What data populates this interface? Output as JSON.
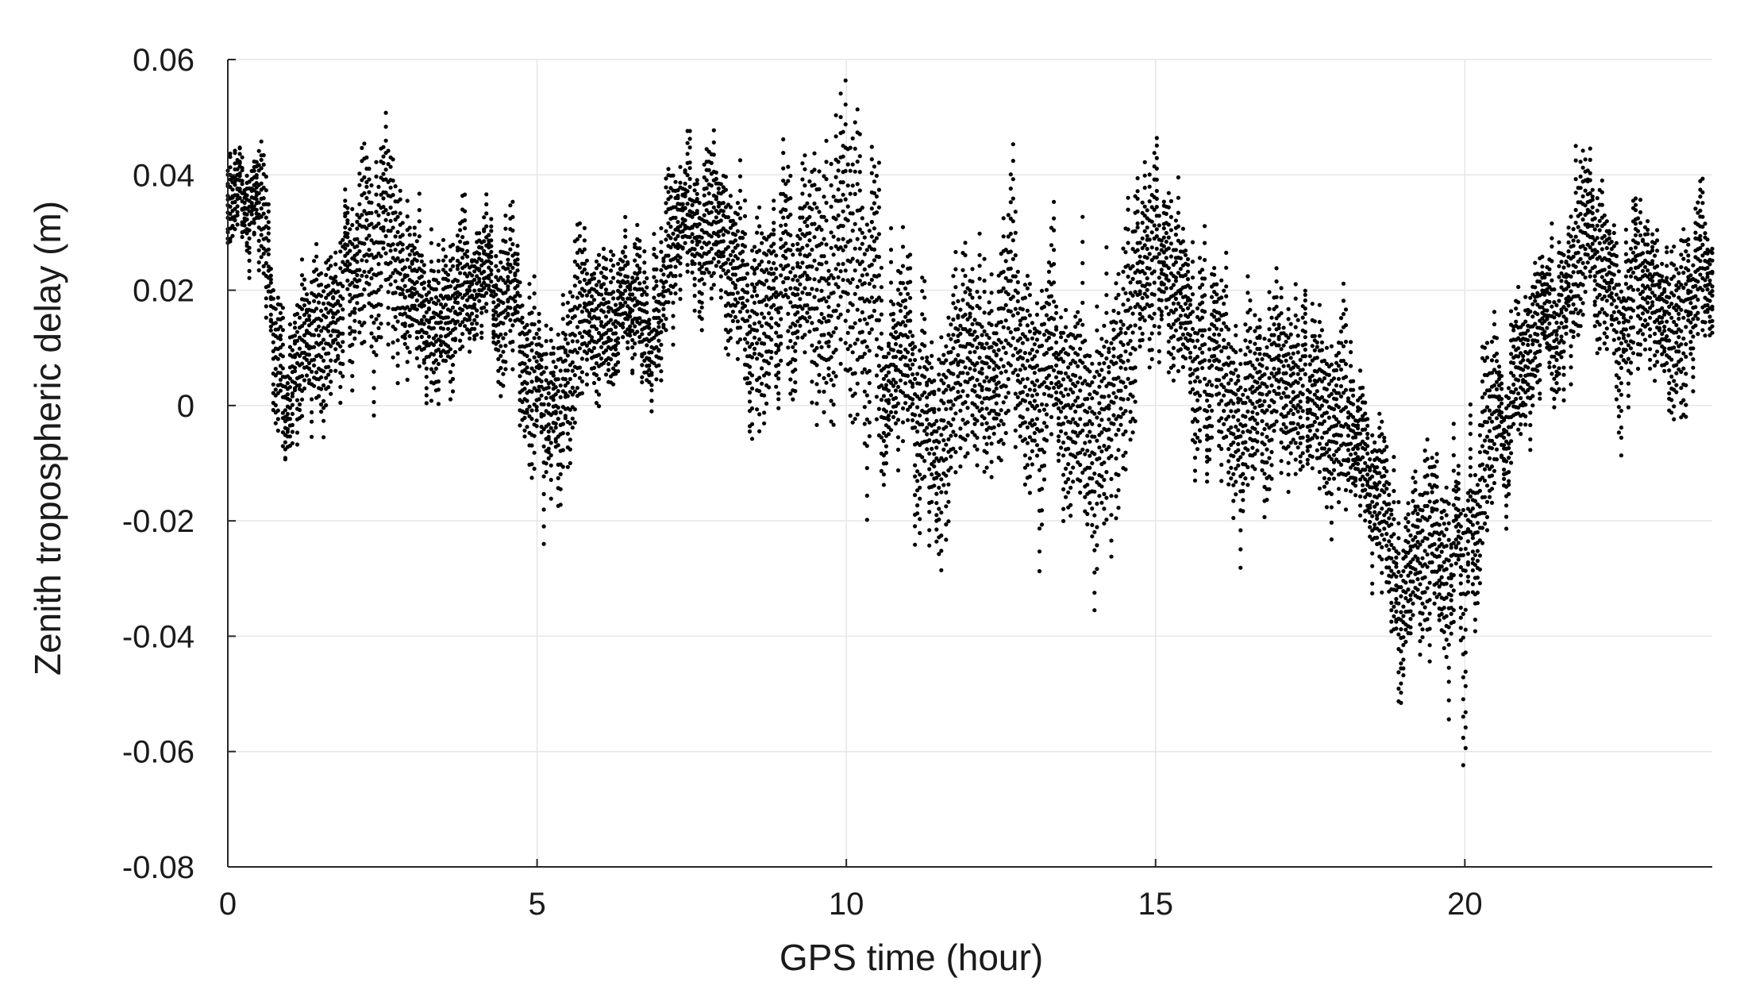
{
  "chart_data": {
    "type": "scatter",
    "title": "",
    "xlabel": "GPS time (hour)",
    "ylabel": "Zenith tropospheric delay (m)",
    "xlim": [
      0,
      24
    ],
    "ylim": [
      -0.08,
      0.06
    ],
    "xticks": [
      0,
      5,
      10,
      15,
      20
    ],
    "xtick_labels": [
      "0",
      "5",
      "10",
      "15",
      "20"
    ],
    "yticks": [
      -0.08,
      -0.06,
      -0.04,
      -0.02,
      0,
      0.02,
      0.04,
      0.06
    ],
    "ytick_labels": [
      "-0.08",
      "-0.06",
      "-0.04",
      "-0.02",
      "0",
      "0.02",
      "0.04",
      "0.06"
    ],
    "grid": true,
    "marker_color": "#000000",
    "series": [
      {
        "x": [
          0.0,
          0.2,
          0.4,
          0.55,
          0.65,
          0.8,
          1.0,
          1.1,
          1.3,
          1.5,
          1.7,
          1.9,
          2.1,
          2.3,
          2.5,
          2.7,
          2.9,
          3.1,
          3.3,
          3.5,
          3.8,
          4.0,
          4.3,
          4.6,
          4.8,
          5.0,
          5.3,
          5.6,
          5.9,
          6.2,
          6.5,
          6.8,
          7.0,
          7.3,
          7.6,
          7.9,
          8.2,
          8.5,
          8.8,
          9.1,
          9.4,
          9.7,
          10.0,
          10.2,
          10.4,
          10.6,
          10.9,
          11.2,
          11.4,
          11.6,
          11.9,
          12.2,
          12.5,
          12.8,
          13.0,
          13.3,
          13.6,
          13.9,
          14.2,
          14.5,
          14.8,
          15.0,
          15.3,
          15.6,
          15.9,
          16.2,
          16.5,
          16.8,
          17.1,
          17.4,
          17.7,
          18.0,
          18.3,
          18.6,
          18.9,
          19.1,
          19.3,
          19.5,
          19.7,
          19.9,
          20.0,
          20.1,
          20.3,
          20.5,
          20.8,
          21.1,
          21.4,
          21.7,
          22.0,
          22.3,
          22.6,
          22.9,
          23.2,
          23.5,
          23.8,
          24.0
        ],
        "y": [
          0.035,
          0.038,
          0.037,
          0.034,
          0.02,
          0.005,
          0.0,
          0.004,
          0.01,
          0.015,
          0.018,
          0.022,
          0.027,
          0.032,
          0.03,
          0.024,
          0.017,
          0.02,
          0.014,
          0.015,
          0.019,
          0.023,
          0.02,
          0.013,
          0.008,
          0.004,
          0.0,
          0.006,
          0.012,
          0.018,
          0.017,
          0.016,
          0.022,
          0.025,
          0.028,
          0.025,
          0.02,
          0.018,
          0.02,
          0.017,
          0.02,
          0.022,
          0.02,
          0.022,
          0.024,
          0.015,
          0.012,
          0.003,
          -0.006,
          0.004,
          0.009,
          0.008,
          0.012,
          0.014,
          0.008,
          0.002,
          -0.002,
          0.0,
          -0.004,
          0.004,
          0.012,
          0.025,
          0.02,
          0.01,
          0.006,
          0.004,
          0.0,
          -0.002,
          0.004,
          0.007,
          0.008,
          -0.004,
          -0.01,
          -0.012,
          -0.03,
          -0.026,
          -0.024,
          -0.018,
          -0.022,
          -0.024,
          -0.045,
          -0.03,
          -0.01,
          -0.003,
          0.004,
          0.009,
          0.014,
          0.022,
          0.026,
          0.02,
          0.018,
          0.018,
          0.019,
          0.021,
          0.023,
          0.022
        ],
        "spread": [
          0.006,
          0.006,
          0.006,
          0.008,
          0.01,
          0.008,
          0.01,
          0.01,
          0.01,
          0.009,
          0.009,
          0.011,
          0.012,
          0.012,
          0.012,
          0.012,
          0.011,
          0.011,
          0.01,
          0.009,
          0.009,
          0.008,
          0.009,
          0.01,
          0.011,
          0.012,
          0.011,
          0.011,
          0.01,
          0.008,
          0.008,
          0.008,
          0.01,
          0.01,
          0.009,
          0.009,
          0.012,
          0.014,
          0.015,
          0.016,
          0.014,
          0.015,
          0.018,
          0.02,
          0.02,
          0.015,
          0.013,
          0.013,
          0.014,
          0.014,
          0.015,
          0.015,
          0.014,
          0.016,
          0.015,
          0.015,
          0.015,
          0.016,
          0.017,
          0.016,
          0.013,
          0.012,
          0.012,
          0.012,
          0.013,
          0.012,
          0.015,
          0.012,
          0.012,
          0.012,
          0.012,
          0.012,
          0.011,
          0.01,
          0.012,
          0.012,
          0.011,
          0.012,
          0.013,
          0.013,
          0.016,
          0.014,
          0.012,
          0.011,
          0.01,
          0.009,
          0.01,
          0.011,
          0.012,
          0.011,
          0.01,
          0.01,
          0.01,
          0.013,
          0.01,
          0.009
        ]
      }
    ]
  }
}
